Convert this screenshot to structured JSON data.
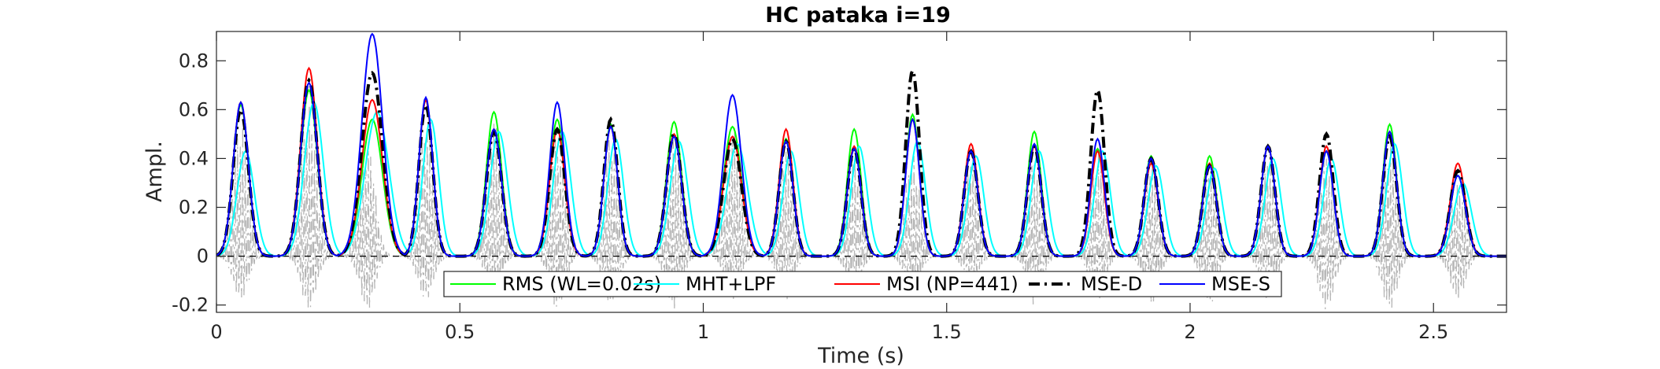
{
  "chart_data": {
    "type": "line",
    "title": "HC pataka i=19",
    "xlabel": "Time (s)",
    "ylabel": "Ampl.",
    "xlim": [
      0,
      2.65
    ],
    "ylim": [
      -0.23,
      0.92
    ],
    "xticks": [
      0,
      0.5,
      1,
      1.5,
      2,
      2.5
    ],
    "xtick_labels": [
      "0",
      "0.5",
      "1",
      "1.5",
      "2",
      "2.5"
    ],
    "yticks": [
      -0.2,
      0,
      0.2,
      0.4,
      0.6,
      0.8
    ],
    "ytick_labels": [
      "-0.2",
      "0",
      "0.2",
      "0.4",
      "0.6",
      "0.8"
    ],
    "grid": false,
    "legend_position": "bottom-center, horizontal",
    "syllable_peaks": {
      "t": [
        0.05,
        0.19,
        0.32,
        0.43,
        0.57,
        0.7,
        0.81,
        0.94,
        1.06,
        1.17,
        1.31,
        1.43,
        1.55,
        1.68,
        1.81,
        1.92,
        2.04,
        2.16,
        2.28,
        2.41,
        2.55
      ],
      "rms": [
        0.62,
        0.68,
        0.56,
        0.64,
        0.59,
        0.56,
        0.54,
        0.55,
        0.53,
        0.48,
        0.52,
        0.58,
        0.43,
        0.51,
        0.44,
        0.41,
        0.41,
        0.45,
        0.43,
        0.54,
        0.33
      ],
      "mht_lpf": [
        0.43,
        0.63,
        0.59,
        0.56,
        0.51,
        0.51,
        0.48,
        0.47,
        0.46,
        0.43,
        0.45,
        0.47,
        0.41,
        0.43,
        0.43,
        0.37,
        0.36,
        0.4,
        0.4,
        0.46,
        0.3
      ],
      "msi": [
        0.63,
        0.77,
        0.64,
        0.64,
        0.52,
        0.52,
        0.53,
        0.5,
        0.49,
        0.52,
        0.45,
        0.56,
        0.46,
        0.45,
        0.43,
        0.38,
        0.38,
        0.45,
        0.45,
        0.51,
        0.38
      ],
      "mse_d": [
        0.6,
        0.72,
        0.75,
        0.62,
        0.51,
        0.52,
        0.56,
        0.5,
        0.48,
        0.47,
        0.44,
        0.76,
        0.43,
        0.45,
        0.68,
        0.4,
        0.37,
        0.45,
        0.5,
        0.49,
        0.35
      ],
      "mse_s": [
        0.63,
        0.71,
        0.91,
        0.65,
        0.52,
        0.63,
        0.53,
        0.49,
        0.66,
        0.47,
        0.44,
        0.56,
        0.43,
        0.46,
        0.48,
        0.4,
        0.37,
        0.45,
        0.43,
        0.51,
        0.33
      ],
      "width_s": [
        0.022,
        0.024,
        0.03,
        0.02,
        0.022,
        0.022,
        0.02,
        0.022,
        0.026,
        0.02,
        0.02,
        0.02,
        0.02,
        0.02,
        0.02,
        0.02,
        0.02,
        0.02,
        0.02,
        0.02,
        0.022
      ]
    },
    "waveform_bursts": {
      "t": [
        0.05,
        0.19,
        0.31,
        0.43,
        0.57,
        0.7,
        0.81,
        0.94,
        1.06,
        1.17,
        1.31,
        1.43,
        1.55,
        1.68,
        1.81,
        1.92,
        2.04,
        2.16,
        2.28,
        2.41,
        2.55
      ],
      "max": [
        0.55,
        0.62,
        0.48,
        0.55,
        0.57,
        0.5,
        0.5,
        0.5,
        0.55,
        0.45,
        0.42,
        0.42,
        0.45,
        0.4,
        0.45,
        0.4,
        0.42,
        0.42,
        0.42,
        0.48,
        0.3
      ],
      "min": [
        -0.18,
        -0.22,
        -0.22,
        -0.18,
        -0.15,
        -0.22,
        -0.2,
        -0.22,
        -0.18,
        -0.18,
        -0.15,
        -0.15,
        -0.1,
        -0.2,
        -0.18,
        -0.2,
        -0.2,
        -0.18,
        -0.22,
        -0.22,
        -0.18
      ]
    },
    "series": [
      {
        "key": "rms",
        "name": "RMS (WL=0.02s)",
        "color": "#00ff00",
        "dash": "solid",
        "width": 2
      },
      {
        "key": "mht_lpf",
        "name": "MHT+LPF",
        "color": "#00ffff",
        "dash": "solid",
        "width": 2
      },
      {
        "key": "msi",
        "name": "MSI (NP=441)",
        "color": "#ff0000",
        "dash": "solid",
        "width": 2
      },
      {
        "key": "mse_d",
        "name": "MSE-D",
        "color": "#000000",
        "dash": "dashdot",
        "width": 4
      },
      {
        "key": "mse_s",
        "name": "MSE-S",
        "color": "#0000ff",
        "dash": "solid",
        "width": 2
      }
    ],
    "background_signal": {
      "color": "#b5b5b5",
      "dash": "dashdot"
    },
    "zero_line": {
      "y": 0,
      "color": "#000000",
      "dash": "dashed"
    }
  }
}
